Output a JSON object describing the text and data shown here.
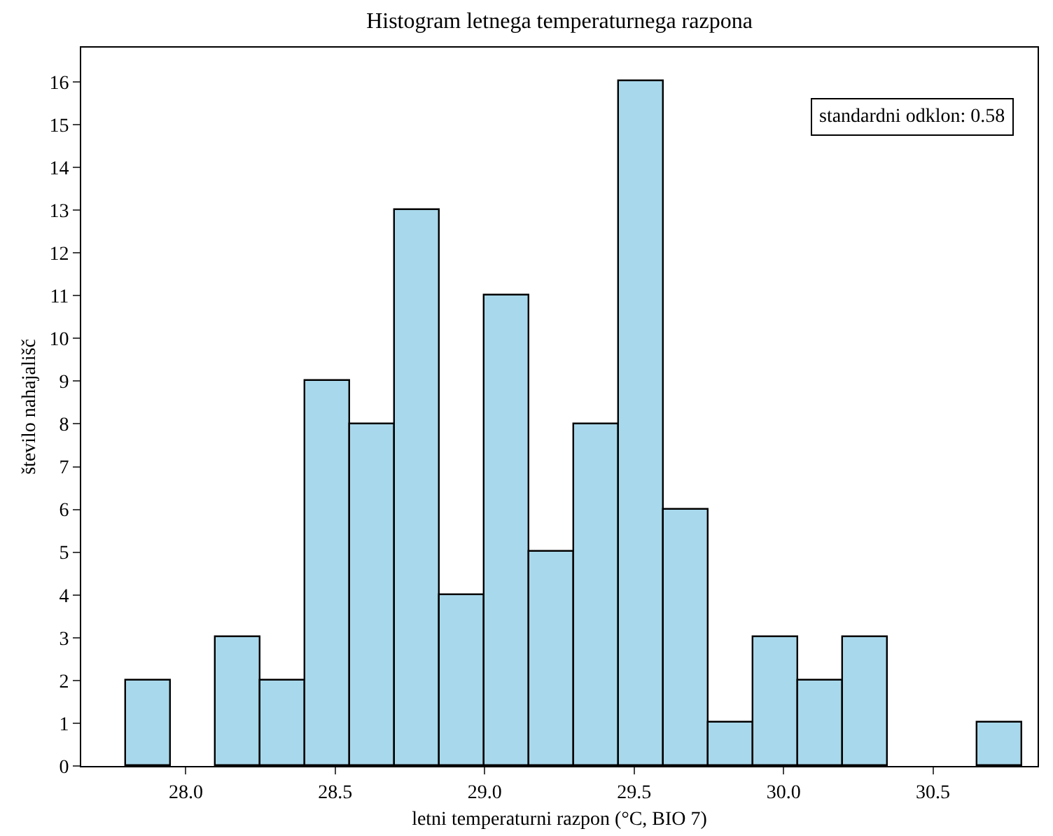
{
  "chart_data": {
    "type": "histogram",
    "title": "Histogram letnega temperaturnega razpona",
    "xlabel": "letni temperaturni razpon (°C, BIO 7)",
    "ylabel": "število nahajališč",
    "bins": [
      27.8,
      27.95,
      28.1,
      28.25,
      28.4,
      28.55,
      28.7,
      28.85,
      29.0,
      29.15,
      29.3,
      29.45,
      29.6,
      29.75,
      29.9,
      30.05,
      30.2,
      30.35,
      30.5,
      30.65,
      30.8
    ],
    "values": [
      2,
      0,
      3,
      2,
      9,
      8,
      13,
      4,
      11,
      5,
      8,
      16,
      6,
      1,
      3,
      2,
      3,
      0,
      0,
      1
    ],
    "color": "#a8d8eb",
    "xlim": [
      27.65,
      30.85
    ],
    "xticks": [
      {
        "value": 28.0,
        "label": "28.0"
      },
      {
        "value": 28.5,
        "label": "28.5"
      },
      {
        "value": 29.0,
        "label": "29.0"
      },
      {
        "value": 29.5,
        "label": "29.5"
      },
      {
        "value": 30.0,
        "label": "30.0"
      },
      {
        "value": 30.5,
        "label": "30.5"
      }
    ],
    "ylim": [
      0,
      16.8
    ],
    "yticks": [
      0,
      1,
      2,
      3,
      4,
      5,
      6,
      7,
      8,
      9,
      10,
      11,
      12,
      13,
      14,
      15,
      16
    ],
    "grid": false,
    "annotations": [
      "standardni odklon: 0.58"
    ]
  }
}
